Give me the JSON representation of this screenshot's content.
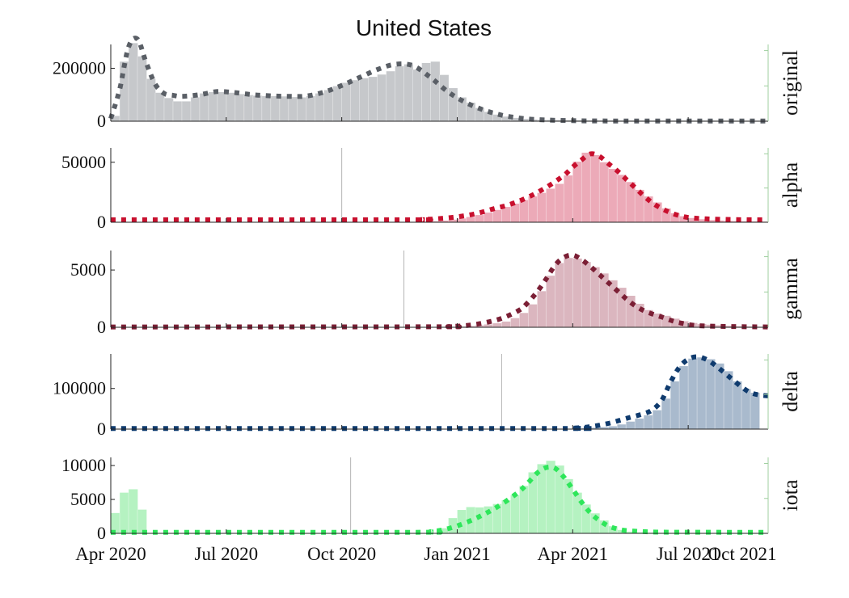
{
  "figure": {
    "title": "United States"
  },
  "chart_data": [
    {
      "type": "area",
      "panel": "original",
      "side_label": "original",
      "color": "#5a5f66",
      "fill": "#c6c8cb",
      "ylim": [
        0,
        290000
      ],
      "yticks": [
        0,
        200000
      ],
      "ytick_labels": [
        "0",
        "200000"
      ],
      "marker_date": null,
      "bars": {
        "start": 0.5,
        "end": 73.5,
        "knots": [
          [
            0.5,
            20000
          ],
          [
            1,
            150000
          ],
          [
            2,
            300000
          ],
          [
            3,
            290000
          ],
          [
            4,
            200000
          ],
          [
            5,
            120000
          ],
          [
            6,
            95000
          ],
          [
            7,
            80000
          ],
          [
            8,
            70000
          ],
          [
            9,
            80000
          ],
          [
            10,
            100000
          ],
          [
            11,
            110000
          ],
          [
            13,
            110000
          ],
          [
            15,
            100000
          ],
          [
            17,
            95000
          ],
          [
            19,
            95000
          ],
          [
            21,
            90000
          ],
          [
            22,
            90000
          ],
          [
            24,
            110000
          ],
          [
            26,
            140000
          ],
          [
            28,
            160000
          ],
          [
            30,
            170000
          ],
          [
            32,
            195000
          ],
          [
            33,
            220000
          ],
          [
            34,
            210000
          ],
          [
            35,
            180000
          ],
          [
            35.5,
            220000
          ],
          [
            36,
            250000
          ],
          [
            37,
            200000
          ],
          [
            38,
            150000
          ],
          [
            39,
            100000
          ],
          [
            40,
            80000
          ],
          [
            41,
            60000
          ],
          [
            42,
            40000
          ],
          [
            43,
            30000
          ],
          [
            44,
            20000
          ],
          [
            46,
            10000
          ],
          [
            48,
            5000
          ],
          [
            55,
            3000
          ],
          [
            73.5,
            2000
          ]
        ]
      },
      "model": [
        [
          0,
          10000
        ],
        [
          1,
          120000
        ],
        [
          2,
          280000
        ],
        [
          3,
          310000
        ],
        [
          4,
          220000
        ],
        [
          5,
          140000
        ],
        [
          6,
          105000
        ],
        [
          7,
          98000
        ],
        [
          8,
          94000
        ],
        [
          10,
          100000
        ],
        [
          12,
          112000
        ],
        [
          14,
          108000
        ],
        [
          16,
          100000
        ],
        [
          18,
          96000
        ],
        [
          20,
          94000
        ],
        [
          22,
          95000
        ],
        [
          24,
          110000
        ],
        [
          26,
          135000
        ],
        [
          28,
          165000
        ],
        [
          30,
          195000
        ],
        [
          32,
          215000
        ],
        [
          34,
          210000
        ],
        [
          36,
          165000
        ],
        [
          38,
          110000
        ],
        [
          40,
          70000
        ],
        [
          42,
          42000
        ],
        [
          44,
          23000
        ],
        [
          46,
          12000
        ],
        [
          48,
          6000
        ],
        [
          52,
          2000
        ],
        [
          56,
          1000
        ],
        [
          74,
          600
        ]
      ]
    },
    {
      "type": "area",
      "panel": "alpha",
      "side_label": "alpha",
      "color": "#c8102e",
      "fill": "#ecaab8",
      "ylim": [
        0,
        62000
      ],
      "yticks": [
        0,
        50000
      ],
      "ytick_labels": [
        "0",
        "50000"
      ],
      "marker_date": 26,
      "bars": {
        "start": 35.5,
        "end": 73.5,
        "knots": [
          [
            35.5,
            300
          ],
          [
            37,
            1000
          ],
          [
            39,
            2500
          ],
          [
            41,
            5000
          ],
          [
            43,
            9000
          ],
          [
            45,
            14000
          ],
          [
            47,
            20000
          ],
          [
            49,
            26000
          ],
          [
            51,
            34000
          ],
          [
            52,
            44000
          ],
          [
            53,
            57000
          ],
          [
            54,
            59000
          ],
          [
            55,
            53000
          ],
          [
            56,
            47000
          ],
          [
            57,
            42000
          ],
          [
            58,
            37000
          ],
          [
            59,
            30000
          ],
          [
            60,
            24000
          ],
          [
            61,
            19000
          ],
          [
            62,
            14000
          ],
          [
            63,
            9000
          ],
          [
            64,
            6000
          ],
          [
            65,
            4000
          ],
          [
            67,
            2000
          ],
          [
            69,
            1200
          ],
          [
            71,
            800
          ],
          [
            73.5,
            500
          ]
        ]
      },
      "model": [
        [
          0,
          2000
        ],
        [
          33,
          2000
        ],
        [
          35,
          2200
        ],
        [
          37,
          3000
        ],
        [
          39,
          4500
        ],
        [
          41,
          7000
        ],
        [
          43,
          11000
        ],
        [
          45,
          15000
        ],
        [
          47,
          21000
        ],
        [
          49,
          29000
        ],
        [
          51,
          39000
        ],
        [
          52,
          46000
        ],
        [
          53,
          52000
        ],
        [
          54,
          57000
        ],
        [
          55,
          55000
        ],
        [
          56,
          49000
        ],
        [
          57,
          43000
        ],
        [
          58,
          36000
        ],
        [
          59,
          29000
        ],
        [
          60,
          22000
        ],
        [
          61,
          16000
        ],
        [
          62,
          11500
        ],
        [
          63,
          8000
        ],
        [
          64,
          5500
        ],
        [
          65,
          4000
        ],
        [
          67,
          2800
        ],
        [
          70,
          2200
        ],
        [
          74,
          2000
        ]
      ]
    },
    {
      "type": "area",
      "panel": "gamma",
      "side_label": "gamma",
      "color": "#7b1f35",
      "fill": "#dbb6bf",
      "ylim": [
        0,
        6700
      ],
      "yticks": [
        0,
        5000
      ],
      "ytick_labels": [
        "0",
        "5000"
      ],
      "marker_date": 33,
      "bars": {
        "start": 38.5,
        "end": 73.5,
        "knots": [
          [
            38.5,
            30
          ],
          [
            40,
            80
          ],
          [
            42,
            200
          ],
          [
            44,
            400
          ],
          [
            45,
            600
          ],
          [
            46,
            1000
          ],
          [
            47,
            1500
          ],
          [
            48,
            2500
          ],
          [
            49,
            3800
          ],
          [
            50,
            5200
          ],
          [
            51,
            6000
          ],
          [
            52,
            6100
          ],
          [
            53,
            5900
          ],
          [
            54,
            5500
          ],
          [
            55,
            5000
          ],
          [
            56,
            4400
          ],
          [
            57,
            3800
          ],
          [
            58,
            3100
          ],
          [
            59,
            2400
          ],
          [
            60,
            1700
          ],
          [
            61,
            1300
          ],
          [
            62,
            1100
          ],
          [
            63,
            900
          ],
          [
            64,
            600
          ],
          [
            66,
            300
          ],
          [
            68,
            200
          ],
          [
            70,
            100
          ],
          [
            73.5,
            40
          ]
        ]
      },
      "model": [
        [
          0,
          30
        ],
        [
          36,
          40
        ],
        [
          38,
          60
        ],
        [
          40,
          150
        ],
        [
          42,
          380
        ],
        [
          44,
          780
        ],
        [
          46,
          1500
        ],
        [
          47,
          2200
        ],
        [
          48,
          3100
        ],
        [
          49,
          4200
        ],
        [
          50,
          5400
        ],
        [
          51,
          6100
        ],
        [
          52,
          6300
        ],
        [
          53,
          5900
        ],
        [
          54,
          5300
        ],
        [
          55,
          4600
        ],
        [
          56,
          3900
        ],
        [
          57,
          3200
        ],
        [
          58,
          2500
        ],
        [
          59,
          1900
        ],
        [
          60,
          1450
        ],
        [
          61,
          1150
        ],
        [
          62,
          900
        ],
        [
          63,
          620
        ],
        [
          64,
          400
        ],
        [
          66,
          150
        ],
        [
          70,
          60
        ],
        [
          74,
          30
        ]
      ]
    },
    {
      "type": "area",
      "panel": "delta",
      "side_label": "delta",
      "color": "#0f3b6e",
      "fill": "#a9bacd",
      "ylim": [
        0,
        185000
      ],
      "yticks": [
        0,
        100000
      ],
      "ytick_labels": [
        "0",
        "100000"
      ],
      "marker_date": 44,
      "bars": {
        "start": 51.5,
        "end": 72.8,
        "knots": [
          [
            51.5,
            500
          ],
          [
            53,
            1500
          ],
          [
            55,
            4000
          ],
          [
            57,
            8000
          ],
          [
            58,
            15000
          ],
          [
            59,
            22000
          ],
          [
            60,
            30000
          ],
          [
            61,
            38000
          ],
          [
            62,
            55000
          ],
          [
            63,
            95000
          ],
          [
            64,
            140000
          ],
          [
            65,
            170000
          ],
          [
            66,
            177000
          ],
          [
            67,
            176000
          ],
          [
            68,
            168000
          ],
          [
            69,
            155000
          ],
          [
            70,
            130000
          ],
          [
            71,
            105000
          ],
          [
            72,
            92000
          ],
          [
            72.8,
            88000
          ]
        ]
      },
      "model": [
        [
          0,
          1500
        ],
        [
          50,
          1500
        ],
        [
          52,
          2200
        ],
        [
          54,
          6000
        ],
        [
          56,
          14000
        ],
        [
          58,
          26000
        ],
        [
          60,
          38000
        ],
        [
          61,
          48000
        ],
        [
          62,
          70000
        ],
        [
          63,
          115000
        ],
        [
          64,
          152000
        ],
        [
          65,
          172000
        ],
        [
          66,
          178000
        ],
        [
          67,
          172000
        ],
        [
          68,
          158000
        ],
        [
          69,
          140000
        ],
        [
          70,
          122000
        ],
        [
          71,
          104000
        ],
        [
          72,
          90000
        ],
        [
          73,
          84000
        ],
        [
          74,
          82000
        ]
      ]
    },
    {
      "type": "area",
      "panel": "iota",
      "side_label": "iota",
      "color": "#2ee65a",
      "fill": "#b5f2c1",
      "ylim": [
        0,
        11200
      ],
      "yticks": [
        0,
        5000,
        10000
      ],
      "ytick_labels": [
        "0",
        "5000",
        "10000"
      ],
      "marker_date": 27,
      "bars": {
        "start": 0.5,
        "end": 73.5,
        "knots": [
          [
            0.5,
            3000
          ],
          [
            1,
            3200
          ],
          [
            1.5,
            6000
          ],
          [
            2.5,
            6500
          ],
          [
            3.5,
            3500
          ],
          [
            4,
            200
          ],
          [
            4.5,
            0
          ],
          [
            37,
            0
          ],
          [
            38,
            1500
          ],
          [
            39,
            3000
          ],
          [
            40,
            3900
          ],
          [
            42,
            3800
          ],
          [
            44,
            4500
          ],
          [
            46,
            6000
          ],
          [
            47,
            8000
          ],
          [
            48,
            10000
          ],
          [
            49,
            10400
          ],
          [
            50,
            11000
          ],
          [
            51,
            9000
          ],
          [
            52,
            7000
          ],
          [
            53,
            5000
          ],
          [
            54,
            3500
          ],
          [
            55,
            2400
          ],
          [
            56,
            1400
          ],
          [
            57,
            700
          ],
          [
            58,
            300
          ],
          [
            60,
            100
          ],
          [
            73.5,
            0
          ]
        ]
      },
      "model": [
        [
          0,
          150
        ],
        [
          34,
          150
        ],
        [
          36,
          250
        ],
        [
          38,
          700
        ],
        [
          40,
          1600
        ],
        [
          42,
          2800
        ],
        [
          44,
          4300
        ],
        [
          46,
          6200
        ],
        [
          47,
          7500
        ],
        [
          48,
          8900
        ],
        [
          49,
          9700
        ],
        [
          50,
          9600
        ],
        [
          51,
          8300
        ],
        [
          52,
          6500
        ],
        [
          53,
          4600
        ],
        [
          54,
          3000
        ],
        [
          55,
          1900
        ],
        [
          56,
          1100
        ],
        [
          57,
          650
        ],
        [
          58,
          420
        ],
        [
          60,
          250
        ],
        [
          63,
          170
        ],
        [
          74,
          150
        ]
      ]
    }
  ],
  "x_axis": {
    "range_months": [
      0,
      74
    ],
    "ticks": [
      0,
      13,
      26,
      39,
      52,
      65,
      78
    ],
    "labels": [
      "Apr 2020",
      "Jul 2020",
      "Oct 2020",
      "Jan 2021",
      "Apr 2021",
      "Jul 2021",
      "Oct 2021"
    ]
  }
}
